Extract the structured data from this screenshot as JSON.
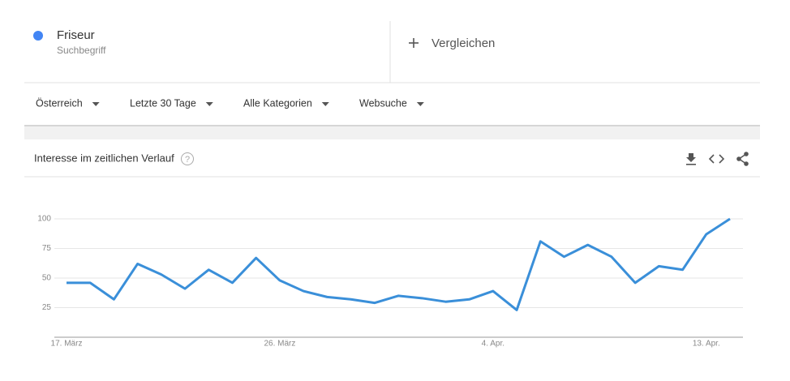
{
  "header": {
    "term_type": "Suchbegriff",
    "compare": "Vergleichen"
  },
  "filters": [
    "Österreich",
    "Letzte 30 Tage",
    "Alle Kategorien",
    "Websuche"
  ],
  "chart_data": {
    "type": "line",
    "title": "Interesse im zeitlichen Verlauf",
    "categories": [
      "17. März",
      null,
      null,
      null,
      null,
      null,
      null,
      null,
      null,
      "26. März",
      null,
      null,
      null,
      null,
      null,
      null,
      null,
      null,
      "4. Apr.",
      null,
      null,
      null,
      null,
      null,
      null,
      null,
      null,
      "13. Apr.",
      null
    ],
    "series": [
      {
        "name": "Friseur",
        "color": "#3a8fd9",
        "values": [
          46,
          46,
          32,
          62,
          53,
          41,
          57,
          46,
          67,
          48,
          39,
          34,
          32,
          29,
          35,
          33,
          30,
          32,
          39,
          23,
          81,
          68,
          78,
          68,
          46,
          60,
          57,
          87,
          100
        ]
      }
    ],
    "ylim": [
      0,
      100
    ],
    "yticks": [
      25,
      50,
      75,
      100
    ],
    "grid": true
  }
}
